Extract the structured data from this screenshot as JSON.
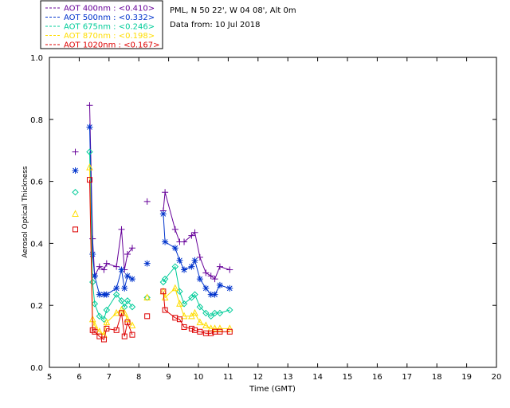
{
  "header": {
    "site": "PML, N 50 22', W 04 08', Alt 0m",
    "date": "Data from: 10 Jul 2018"
  },
  "chart_data": {
    "type": "line",
    "xlabel": "Time (GMT)",
    "ylabel": "Aerosol Optical Thickness",
    "xlim": [
      5,
      20
    ],
    "ylim": [
      0.0,
      1.0
    ],
    "xticks": [
      "5",
      "6",
      "7",
      "8",
      "9",
      "10",
      "11",
      "12",
      "13",
      "14",
      "15",
      "16",
      "17",
      "18",
      "19",
      "20"
    ],
    "yticks": [
      "0.0",
      "0.2",
      "0.4",
      "0.6",
      "0.8",
      "1.0"
    ],
    "legend_position": "top-left",
    "series": [
      {
        "name": "AOT  400nm : <0.410>",
        "color": "#660099",
        "marker": "plus",
        "x": [
          5.87,
          6.35,
          6.45,
          6.52,
          6.68,
          6.83,
          6.92,
          7.25,
          7.42,
          7.52,
          7.62,
          7.78,
          8.28,
          8.82,
          8.88,
          9.22,
          9.37,
          9.52,
          9.77,
          9.88,
          10.05,
          10.25,
          10.42,
          10.55,
          10.72,
          11.05
        ],
        "y": [
          0.695,
          0.845,
          0.415,
          0.295,
          0.325,
          0.315,
          0.335,
          0.325,
          0.445,
          0.315,
          0.365,
          0.385,
          0.535,
          0.505,
          0.565,
          0.445,
          0.405,
          0.405,
          0.425,
          0.435,
          0.355,
          0.305,
          0.295,
          0.285,
          0.325,
          0.315
        ]
      },
      {
        "name": "AOT  500nm : <0.332>",
        "color": "#0033cc",
        "marker": "asterisk",
        "x": [
          5.87,
          6.35,
          6.45,
          6.52,
          6.68,
          6.83,
          6.92,
          7.25,
          7.42,
          7.52,
          7.62,
          7.78,
          8.28,
          8.82,
          8.88,
          9.22,
          9.37,
          9.52,
          9.77,
          9.88,
          10.05,
          10.25,
          10.42,
          10.55,
          10.72,
          11.05
        ],
        "y": [
          0.635,
          0.775,
          0.365,
          0.295,
          0.235,
          0.235,
          0.235,
          0.255,
          0.315,
          0.255,
          0.295,
          0.285,
          0.335,
          0.495,
          0.405,
          0.385,
          0.345,
          0.315,
          0.325,
          0.345,
          0.285,
          0.255,
          0.235,
          0.235,
          0.265,
          0.255
        ]
      },
      {
        "name": "AOT  675nm : <0.246>",
        "color": "#00cc99",
        "marker": "diamond",
        "x": [
          5.87,
          6.35,
          6.45,
          6.52,
          6.68,
          6.83,
          6.92,
          7.25,
          7.42,
          7.52,
          7.62,
          7.78,
          8.28,
          8.82,
          8.88,
          9.22,
          9.37,
          9.52,
          9.77,
          9.88,
          10.05,
          10.25,
          10.42,
          10.55,
          10.72,
          11.05
        ],
        "y": [
          0.565,
          0.695,
          0.275,
          0.205,
          0.165,
          0.155,
          0.185,
          0.235,
          0.215,
          0.195,
          0.215,
          0.195,
          0.225,
          0.275,
          0.285,
          0.325,
          0.245,
          0.205,
          0.225,
          0.235,
          0.195,
          0.175,
          0.165,
          0.175,
          0.175,
          0.185
        ]
      },
      {
        "name": "AOT  870nm : <0.198>",
        "color": "#ffdd00",
        "marker": "triangle",
        "x": [
          5.87,
          6.35,
          6.45,
          6.52,
          6.68,
          6.83,
          6.92,
          7.25,
          7.42,
          7.52,
          7.62,
          7.78,
          8.28,
          8.82,
          8.88,
          9.22,
          9.37,
          9.52,
          9.77,
          9.88,
          10.05,
          10.25,
          10.42,
          10.55,
          10.72,
          11.05
        ],
        "y": [
          0.495,
          0.645,
          0.155,
          0.135,
          0.115,
          0.105,
          0.145,
          0.175,
          0.185,
          0.175,
          0.155,
          0.135,
          0.225,
          0.245,
          0.225,
          0.255,
          0.205,
          0.165,
          0.165,
          0.175,
          0.145,
          0.135,
          0.125,
          0.125,
          0.125,
          0.125
        ]
      },
      {
        "name": "AOT 1020nm : <0.167>",
        "color": "#dd0000",
        "marker": "square",
        "x": [
          5.87,
          6.35,
          6.45,
          6.52,
          6.68,
          6.83,
          6.92,
          7.25,
          7.42,
          7.52,
          7.62,
          7.78,
          8.28,
          8.82,
          8.88,
          9.22,
          9.37,
          9.52,
          9.77,
          9.88,
          10.05,
          10.25,
          10.42,
          10.55,
          10.72,
          11.05
        ],
        "y": [
          0.445,
          0.605,
          0.12,
          0.115,
          0.1,
          0.09,
          0.125,
          0.12,
          0.175,
          0.1,
          0.145,
          0.105,
          0.165,
          0.245,
          0.185,
          0.16,
          0.155,
          0.13,
          0.125,
          0.12,
          0.115,
          0.11,
          0.11,
          0.115,
          0.115,
          0.115
        ]
      }
    ]
  }
}
